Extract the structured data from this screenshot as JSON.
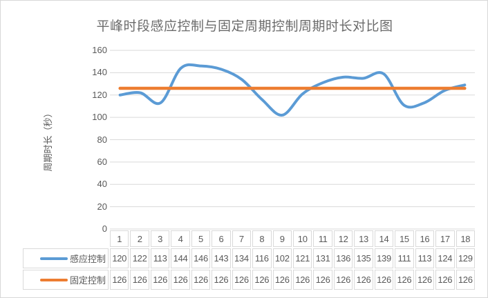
{
  "chart_data": {
    "type": "line",
    "title": "平峰时段感应控制与固定周期控制周期时长对比图",
    "xlabel": "",
    "ylabel": "周期时长（秒）",
    "categories": [
      "1",
      "2",
      "3",
      "4",
      "5",
      "6",
      "7",
      "8",
      "9",
      "10",
      "11",
      "12",
      "13",
      "14",
      "15",
      "16",
      "17",
      "18"
    ],
    "series": [
      {
        "name": "感应控制",
        "color": "#5B9BD5",
        "smooth": true,
        "width": 4,
        "values": [
          120,
          122,
          113,
          144,
          146,
          143,
          134,
          116,
          102,
          121,
          131,
          136,
          135,
          139,
          111,
          113,
          124,
          129
        ]
      },
      {
        "name": "固定控制",
        "color": "#ED7D31",
        "smooth": false,
        "width": 4.5,
        "values": [
          126,
          126,
          126,
          126,
          126,
          126,
          126,
          126,
          126,
          126,
          126,
          126,
          126,
          126,
          126,
          126,
          126,
          126
        ]
      }
    ],
    "ylim": [
      0,
      160
    ],
    "yticks": [
      0,
      20,
      40,
      60,
      80,
      100,
      120,
      140,
      160
    ],
    "grid": true,
    "gridline_color": "#D9D9D9",
    "legend_position": "data-table-left"
  }
}
